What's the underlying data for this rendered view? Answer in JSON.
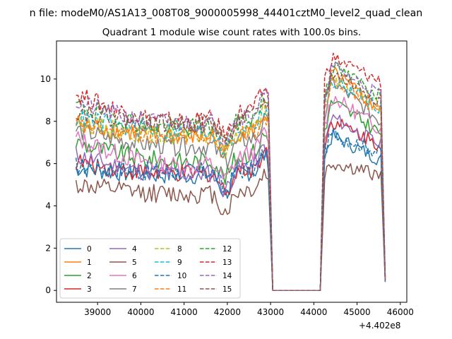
{
  "figure": {
    "suptitle": "n file: modeM0/AS1A13_008T08_9000005998_44401cztM0_level2_quad_clean",
    "title": "Quadrant 1 module wise count rates with 100.0s bins.",
    "offset_text": "+4.402e8"
  },
  "chart_data": {
    "type": "line",
    "title": "Quadrant 1 module wise count rates with 100.0s bins.",
    "xlabel": "",
    "ylabel": "",
    "xlim": [
      38050,
      46150
    ],
    "ylim": [
      -0.56,
      11.8
    ],
    "x_ticks": [
      39000,
      40000,
      41000,
      42000,
      43000,
      44000,
      45000,
      46000
    ],
    "x_tick_labels": [
      "39000",
      "40000",
      "41000",
      "42000",
      "43000",
      "44000",
      "45000",
      "46000"
    ],
    "y_ticks": [
      0,
      2,
      4,
      6,
      8,
      10
    ],
    "y_tick_labels": [
      "0",
      "2",
      "4",
      "6",
      "8",
      "10"
    ],
    "x_offset": "+4.402e8",
    "grid": false,
    "legend_position": "lower-left",
    "legend_columns": 4,
    "segments": {
      "seg1_start": 38500,
      "seg1_end": 42950,
      "gap_x": [
        43050,
        44150
      ],
      "seg2_start": 44250,
      "seg2_end": 45550,
      "final_x": 45650
    },
    "series": [
      {
        "name": "0",
        "color": "#1f77b4",
        "dash": "solid",
        "seg1_level": 5.8,
        "seg1_trend": -0.35,
        "seg2_level": 6.3,
        "seg2_peak": 7.5,
        "final": 0.4
      },
      {
        "name": "1",
        "color": "#ff7f0e",
        "dash": "solid",
        "seg1_level": 7.9,
        "seg1_trend": -0.6,
        "seg2_level": 8.7,
        "seg2_peak": 10.6,
        "final": 0.5
      },
      {
        "name": "2",
        "color": "#2ca02c",
        "dash": "solid",
        "seg1_level": 7.0,
        "seg1_trend": -0.9,
        "seg2_level": 7.6,
        "seg2_peak": 9.2,
        "final": 0.65
      },
      {
        "name": "3",
        "color": "#d62728",
        "dash": "solid",
        "seg1_level": 6.1,
        "seg1_trend": -0.6,
        "seg2_level": 7.0,
        "seg2_peak": 8.2,
        "final": 0.5
      },
      {
        "name": "4",
        "color": "#9467bd",
        "dash": "solid",
        "seg1_level": 6.4,
        "seg1_trend": -0.9,
        "seg2_level": 7.0,
        "seg2_peak": 8.4,
        "final": 0.55
      },
      {
        "name": "5",
        "color": "#8c564b",
        "dash": "solid",
        "seg1_level": 5.0,
        "seg1_trend": -0.45,
        "seg2_level": 5.5,
        "seg2_peak": 6.1,
        "final": 0.45
      },
      {
        "name": "6",
        "color": "#e377c2",
        "dash": "solid",
        "seg1_level": 7.2,
        "seg1_trend": -1.3,
        "seg2_level": 7.8,
        "seg2_peak": 9.4,
        "final": 0.6
      },
      {
        "name": "7",
        "color": "#7f7f7f",
        "dash": "solid",
        "seg1_level": 7.6,
        "seg1_trend": -0.8,
        "seg2_level": 8.2,
        "seg2_peak": 10.2,
        "final": 0.55
      },
      {
        "name": "8",
        "color": "#bcbd22",
        "dash": "dashed",
        "seg1_level": 8.0,
        "seg1_trend": -0.7,
        "seg2_level": 8.9,
        "seg2_peak": 10.3,
        "final": 0.7
      },
      {
        "name": "9",
        "color": "#17becf",
        "dash": "dashed",
        "seg1_level": 8.2,
        "seg1_trend": -0.7,
        "seg2_level": 8.8,
        "seg2_peak": 10.1,
        "final": 0.6
      },
      {
        "name": "10",
        "color": "#1f77b4",
        "dash": "dashed",
        "seg1_level": 5.9,
        "seg1_trend": -0.3,
        "seg2_level": 6.6,
        "seg2_peak": 7.6,
        "final": 0.45
      },
      {
        "name": "11",
        "color": "#ff7f0e",
        "dash": "dashed",
        "seg1_level": 7.8,
        "seg1_trend": -0.5,
        "seg2_level": 8.6,
        "seg2_peak": 10.4,
        "final": 0.6
      },
      {
        "name": "12",
        "color": "#2ca02c",
        "dash": "dashed",
        "seg1_level": 8.8,
        "seg1_trend": -1.1,
        "seg2_level": 9.4,
        "seg2_peak": 10.8,
        "final": 0.7
      },
      {
        "name": "13",
        "color": "#d62728",
        "dash": "dashed",
        "seg1_level": 9.3,
        "seg1_trend": -1.3,
        "seg2_level": 10.0,
        "seg2_peak": 11.2,
        "final": 0.6
      },
      {
        "name": "14",
        "color": "#9467bd",
        "dash": "dashed",
        "seg1_level": 8.9,
        "seg1_trend": -1.0,
        "seg2_level": 9.4,
        "seg2_peak": 10.8,
        "final": 0.55
      },
      {
        "name": "15",
        "color": "#8c564b",
        "dash": "dashed",
        "seg1_level": 8.5,
        "seg1_trend": -0.6,
        "seg2_level": 9.1,
        "seg2_peak": 10.5,
        "final": 0.5
      }
    ]
  }
}
